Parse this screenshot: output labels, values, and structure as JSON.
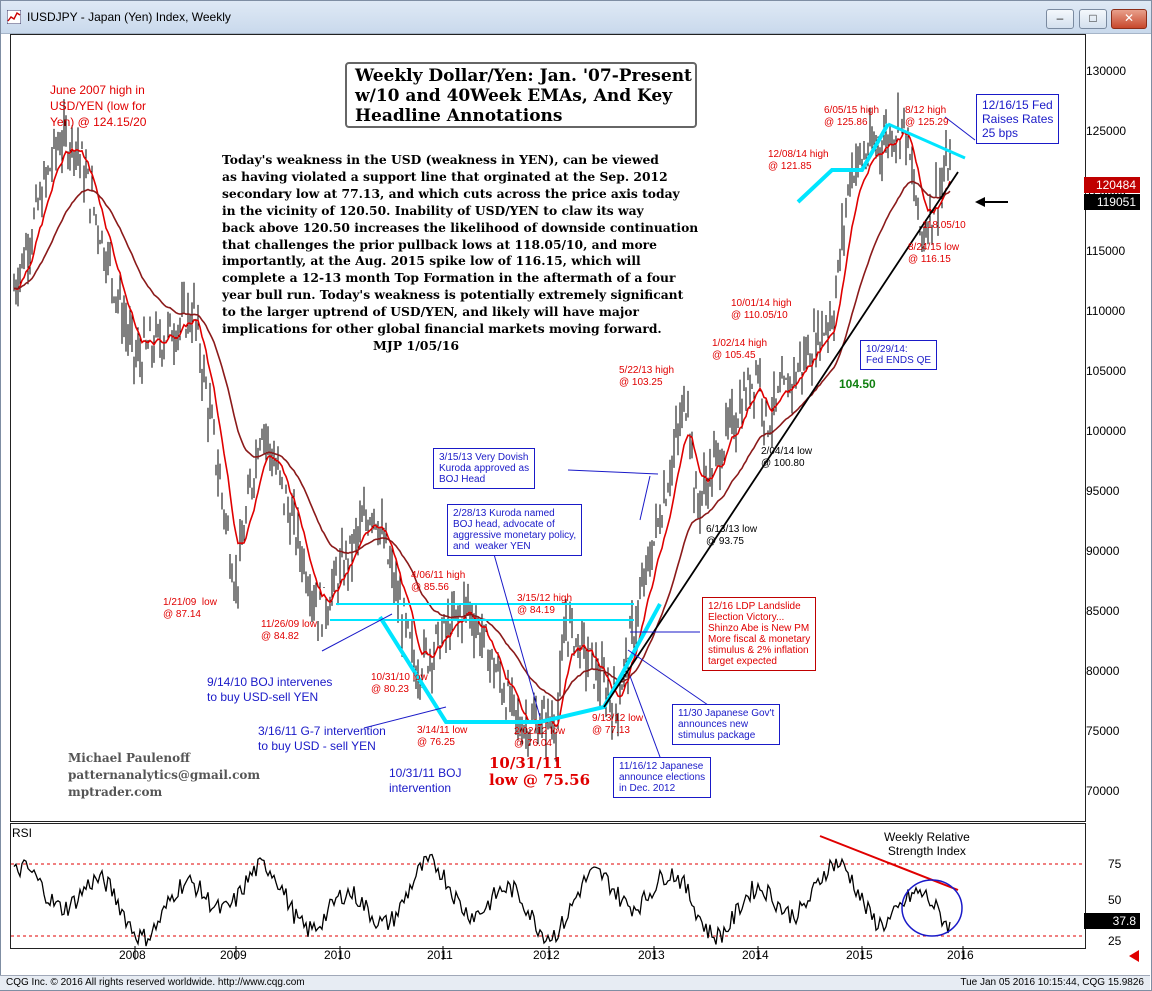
{
  "window": {
    "title": "IUSDJPY - Japan (Yen) Index, Weekly",
    "minimize": "‒",
    "maximize": "□",
    "close": "✕"
  },
  "chart_title": "Weekly Dollar/Yen: Jan. '07-Present\nw/10 and 40Week EMAs, And Key\nHeadline Annotations",
  "commentary": "Today's weakness in the USD (weakness in YEN), can be viewed\nas having violated a support line that orginated at the Sep. 2012\nsecondary low at 77.13, and which cuts across the price axis today\nin the vicinity of 120.50. Inability of USD/YEN to claw its way\nback above 120.50 increases the likelihood of downside continuation\nthat challenges the prior pullback lows at 118.05/10, and more\nimportantly, at the Aug. 2015 spike low of 116.15, which will\ncomplete a 12-13 month Top Formation in the aftermath of a four\nyear bull run. Today's weakness is potentially extremely significant\nto the larger uptrend of USD/YEN, and likely will have major\nimplications for other global financial markets moving forward.",
  "signature": "MJP 1/05/16",
  "author": "Michael Paulenoff\npatternanalytics@gmail.com\nmptrader.com",
  "annotations": {
    "june2007": "June 2007 high in\nUSD/YEN (low for\nYen) @ 124.15/20",
    "jan2009": "1/21/09  low\n@ 87.14",
    "nov2009": "11/26/09 low\n@ 84.82",
    "oct2010": "10/31/10 low\n@ 80.23",
    "apr2011": "4/06/11 high\n@ 85.56",
    "mar2011": "3/14/11 low\n@ 76.25",
    "oct2011": "10/31/11\nlow @ 75.56",
    "feb2012": "2/02/12 low\n@ 76.04",
    "mar2012": "3/15/12 high\n@ 84.19",
    "sep2012": "9/13/12 low\n@ 77.13",
    "may2013": "5/22/13 high\n@ 103.25",
    "jun2013": "6/13/13 low\n@ 93.75",
    "jan2014": "1/02/14 high\n@ 105.45",
    "feb2014": "2/04/14 low\n@ 100.80",
    "oct2014": "10/01/14 high\n@ 110.05/10",
    "dec2014": "12/08/14 high\n@ 121.85",
    "jun2015": "6/05/15 high\n@ 125.86",
    "aug2015h": "8/12 high\n@ 125.29",
    "low118": "118.05/10",
    "aug2015l": "8/24/15 low\n@ 116.15",
    "val10450": "104.50",
    "boj2010": "9/14/10 BOJ intervenes\nto buy USD-sell YEN",
    "g7_2011": "3/16/11 G-7 intervention\nto buy USD - sell YEN",
    "boj2011": "10/31/11 BOJ\nintervention"
  },
  "boxes": {
    "fed": "12/16/15 Fed\nRaises Rates\n25 bps",
    "qe": "10/29/14:\nFed ENDS QE",
    "kuroda_approved": "3/15/13 Very Dovish\nKuroda approved as\nBOJ Head",
    "kuroda_named": "2/28/13 Kuroda named\nBOJ head, advocate of\naggressive monetary policy,\nand  weaker YEN",
    "ldp": "12/16 LDP Landslide\nElection Victory...\nShinzo Abe is New PM\nMore fiscal & monetary\nstimulus & 2% inflation\ntarget expected",
    "stimulus": "11/30 Japanese Gov't\nannounces new\nstimulus package",
    "elections": "11/16/12 Japanese\nannounce elections\nin Dec. 2012"
  },
  "rsi": {
    "label": "RSI",
    "title": "Weekly Relative\nStrength Index",
    "current": "37.8",
    "ticks": [
      "75",
      "50",
      "25"
    ]
  },
  "price_axis": {
    "ticks": [
      "130000",
      "125000",
      "120000",
      "115000",
      "110000",
      "105000",
      "100000",
      "95000",
      "90000",
      "85000",
      "80000",
      "75000",
      "70000"
    ],
    "tag_ema": "120484",
    "tag_last": "119051"
  },
  "years": [
    "2008",
    "2009",
    "2010",
    "2011",
    "2012",
    "2013",
    "2014",
    "2015",
    "2016"
  ],
  "status": {
    "left": "CQG Inc. © 2016 All rights reserved worldwide. http://www.cqg.com",
    "right": "Tue Jan 05 2016 10:15:44, CQG 15.9826"
  },
  "colors": {
    "price_bars": "#000000",
    "ema10": "#e00000",
    "ema40": "#8b1a1a",
    "channel": "#00e5ff",
    "annotation_red": "#e00000",
    "annotation_blue": "#1a1ac8"
  },
  "chart_data": {
    "type": "line",
    "title": "Weekly Dollar/Yen: Jan. '07-Present",
    "ylim": [
      70,
      130
    ],
    "x": [
      "2007-06",
      "2008-01",
      "2008-08",
      "2009-01",
      "2009-04",
      "2009-11",
      "2010-05",
      "2010-10",
      "2011-04",
      "2011-10",
      "2012-02",
      "2012-03",
      "2012-09",
      "2013-05",
      "2013-06",
      "2014-01",
      "2014-02",
      "2014-10",
      "2014-12",
      "2015-06",
      "2015-08",
      "2015-12",
      "2016-01"
    ],
    "series": [
      {
        "name": "Price",
        "values": [
          124.2,
          106,
          110,
          87.1,
          101,
          84.8,
          94,
          80.2,
          85.6,
          75.6,
          76.0,
          84.2,
          77.1,
          103.3,
          93.8,
          105.5,
          100.8,
          110.1,
          121.9,
          125.9,
          116.2,
          123.5,
          119.05
        ]
      }
    ]
  }
}
